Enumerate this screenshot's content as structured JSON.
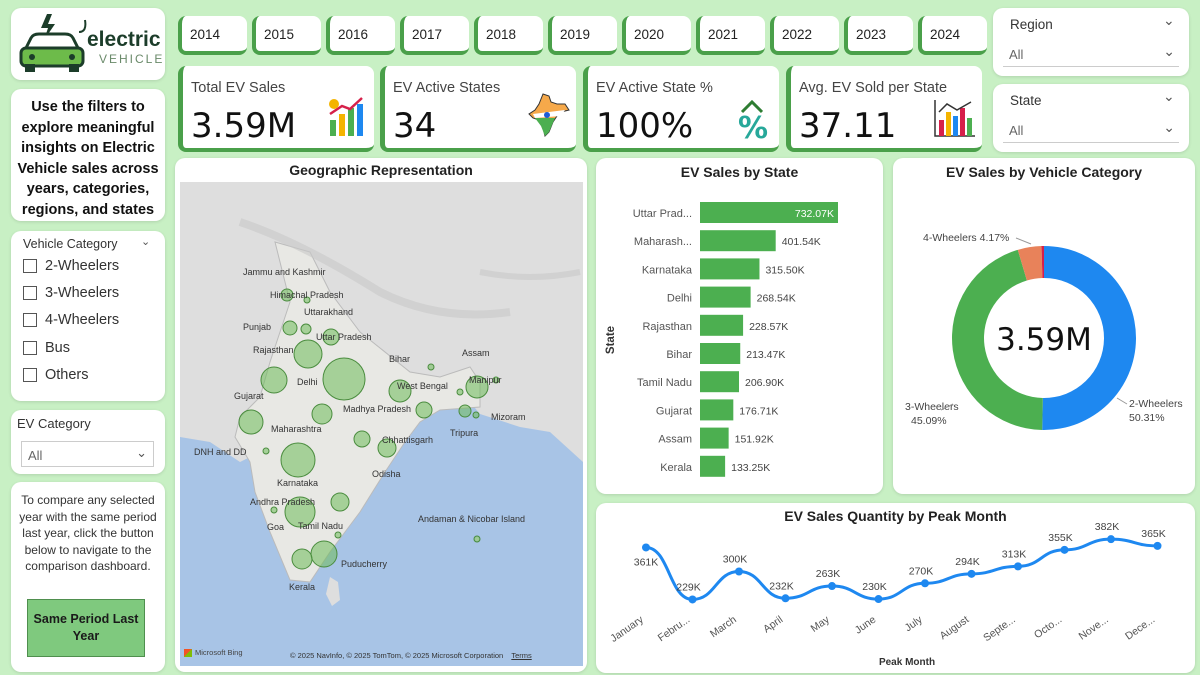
{
  "logo": {
    "line1": "electric",
    "line2": "VEHICLE"
  },
  "filter_hint": "Use the filters to explore meaningful insights on Electric Vehicle sales across years, categories, regions, and states",
  "years": [
    "2014",
    "2015",
    "2016",
    "2017",
    "2018",
    "2019",
    "2020",
    "2021",
    "2022",
    "2023",
    "2024"
  ],
  "vehicle_category_slicer": {
    "title": "Vehicle Category",
    "options": [
      "2-Wheelers",
      "3-Wheelers",
      "4-Wheelers",
      "Bus",
      "Others"
    ]
  },
  "ev_category_slicer": {
    "title": "EV Category",
    "value": "All"
  },
  "region_slicer": {
    "title": "Region",
    "value": "All"
  },
  "state_slicer": {
    "title": "State",
    "value": "All"
  },
  "compare_hint": "To compare any selected year with the same period last year, click the button below to navigate to the comparison dashboard.",
  "compare_button": "Same Period Last Year",
  "kpis": [
    {
      "label": "Total EV Sales",
      "value": "3.59M",
      "icon": "bar-chart-coins-icon"
    },
    {
      "label": "EV Active States",
      "value": "34",
      "icon": "india-map-icon"
    },
    {
      "label": "EV Active State %",
      "value": "100%",
      "icon": "percent-arrow-icon"
    },
    {
      "label": "Avg. EV Sold per State",
      "value": "37.11",
      "icon": "bar-chart-trend-icon"
    }
  ],
  "map": {
    "title": "Geographic Representation",
    "labels": [
      "Jammu and Kashmir",
      "Himachal Pradesh",
      "Uttarakhand",
      "Punjab",
      "Uttar Pradesh",
      "Rajasthan",
      "Bihar",
      "Assam",
      "Delhi",
      "West Bengal",
      "Manipur",
      "Gujarat",
      "Madhya Pradesh",
      "Mizoram",
      "Maharashtra",
      "Tripura",
      "Chhattisgarh",
      "DNH and DD",
      "Odisha",
      "Karnataka",
      "Andhra Pradesh",
      "Andaman & Nicobar Island",
      "Goa",
      "Tamil Nadu",
      "Puducherry",
      "Kerala"
    ],
    "attribution": "© 2025 NavInfo, © 2025 TomTom, © 2025 Microsoft Corporation",
    "terms": "Terms",
    "brand": "Microsoft Bing"
  },
  "colors": {
    "accent": "#4aa04a",
    "bar": "#4caf50",
    "blue": "#1e88f0",
    "orange": "#e8825a",
    "red": "#d6204a",
    "background": "#c8f0c4"
  },
  "chart_data": [
    {
      "type": "bar",
      "title": "EV Sales by State",
      "ylabel": "State",
      "categories": [
        "Uttar Prad...",
        "Maharash...",
        "Karnataka",
        "Delhi",
        "Rajasthan",
        "Bihar",
        "Tamil Nadu",
        "Gujarat",
        "Assam",
        "Kerala"
      ],
      "values": [
        732070,
        401540,
        315500,
        268540,
        228570,
        213470,
        206900,
        176710,
        151920,
        133250
      ],
      "data_labels": [
        "732.07K",
        "401.54K",
        "315.50K",
        "268.54K",
        "228.57K",
        "213.47K",
        "206.90K",
        "176.71K",
        "151.92K",
        "133.25K"
      ]
    },
    {
      "type": "pie",
      "title": "EV Sales by Vehicle Category",
      "center_label": "3.59M",
      "slices": [
        {
          "name": "2-Wheelers",
          "percent": 50.31,
          "label": "50.31%"
        },
        {
          "name": "3-Wheelers",
          "percent": 45.09,
          "label": "45.09%"
        },
        {
          "name": "4-Wheelers",
          "percent": 4.17,
          "label": "4.17%"
        },
        {
          "name": "Others",
          "percent": 0.43,
          "label": ""
        }
      ]
    },
    {
      "type": "line",
      "title": "EV Sales Quantity by Peak Month",
      "xlabel": "Peak Month",
      "categories": [
        "January",
        "Febru...",
        "March",
        "April",
        "May",
        "June",
        "July",
        "August",
        "Septe...",
        "Octo...",
        "Nove...",
        "Dece..."
      ],
      "values": [
        361000,
        229000,
        300000,
        232000,
        263000,
        230000,
        270000,
        294000,
        313000,
        355000,
        382000,
        365000
      ],
      "data_labels": [
        "361K",
        "229K",
        "300K",
        "232K",
        "263K",
        "230K",
        "270K",
        "294K",
        "313K",
        "355K",
        "382K",
        "365K"
      ]
    }
  ]
}
